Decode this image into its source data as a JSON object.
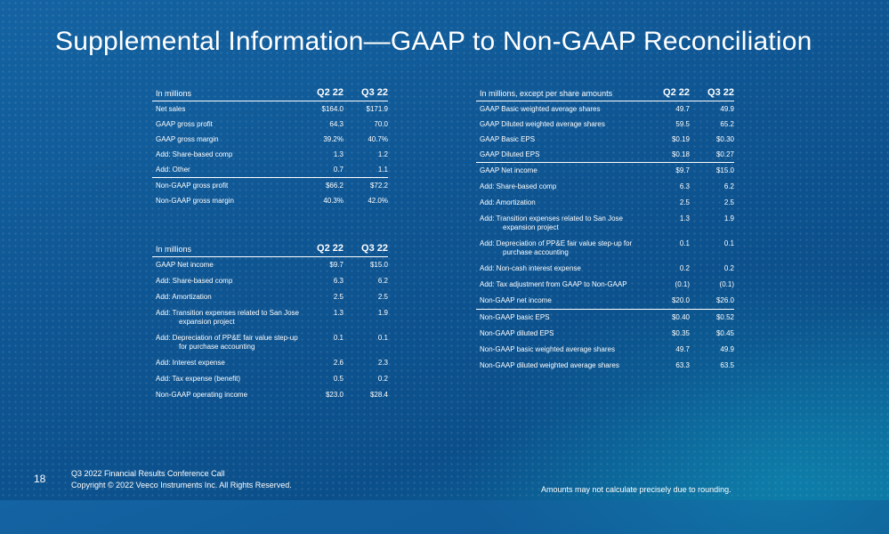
{
  "slide": {
    "title": "Supplemental Information—GAAP to Non-GAAP Reconciliation",
    "page_number": "18",
    "footer_line1": "Q3 2022 Financial Results Conference Call",
    "footer_line2": "Copyright © 2022 Veeco Instruments Inc. All Rights Reserved.",
    "note": "Amounts may not calculate precisely due to rounding."
  },
  "gross_table": {
    "header": {
      "label": "In millions",
      "col1": "Q2 22",
      "col2": "Q3 22"
    },
    "rows": [
      {
        "label": "Net sales",
        "q2": "$164.0",
        "q3": "$171.9"
      },
      {
        "label": "GAAP gross profit",
        "q2": "64.3",
        "q3": "70.0"
      },
      {
        "label": "GAAP gross margin",
        "q2": "39.2%",
        "q3": "40.7%"
      },
      {
        "label": "Add: Share-based comp",
        "q2": "1.3",
        "q3": "1.2"
      },
      {
        "label": "Add: Other",
        "q2": "0.7",
        "q3": "1.1"
      },
      {
        "label": "Non-GAAP gross profit",
        "q2": "$66.2",
        "q3": "$72.2"
      },
      {
        "label": "Non-GAAP gross margin",
        "q2": "40.3%",
        "q3": "42.0%"
      }
    ]
  },
  "operating_table": {
    "header": {
      "label": "In millions",
      "col1": "Q2 22",
      "col2": "Q3 22"
    },
    "rows": [
      {
        "label": "GAAP Net income",
        "q2": "$9.7",
        "q3": "$15.0"
      },
      {
        "label": "Add: Share-based comp",
        "q2": "6.3",
        "q3": "6.2"
      },
      {
        "label": "Add: Amortization",
        "q2": "2.5",
        "q3": "2.5"
      },
      {
        "label": "Add: Transition expenses related to San Jose",
        "label2": "expansion project",
        "q2": "1.3",
        "q3": "1.9"
      },
      {
        "label": "Add: Depreciation of PP&E fair value step-up",
        "label2": "for purchase accounting",
        "q2": "0.1",
        "q3": "0.1"
      },
      {
        "label": "Add: Interest expense",
        "q2": "2.6",
        "q3": "2.3"
      },
      {
        "label": "Add: Tax expense (benefit)",
        "q2": "0.5",
        "q3": "0.2"
      },
      {
        "label": "Non-GAAP operating income",
        "q2": "$23.0",
        "q3": "$28.4"
      }
    ]
  },
  "eps_table": {
    "header": {
      "label": "In millions, except per share amounts",
      "col1": "Q2 22",
      "col2": "Q3 22"
    },
    "rows": [
      {
        "label": "GAAP Basic weighted average shares",
        "q2": "49.7",
        "q3": "49.9"
      },
      {
        "label": "GAAP Diluted weighted average shares",
        "q2": "59.5",
        "q3": "65.2"
      },
      {
        "label": "GAAP Basic EPS",
        "q2": "$0.19",
        "q3": "$0.30"
      },
      {
        "label": "GAAP Diluted EPS",
        "q2": "$0.18",
        "q3": "$0.27"
      },
      {
        "label": "GAAP Net income",
        "q2": "$9.7",
        "q3": "$15.0"
      },
      {
        "label": "Add: Share-based comp",
        "q2": "6.3",
        "q3": "6.2"
      },
      {
        "label": "Add: Amortization",
        "q2": "2.5",
        "q3": "2.5"
      },
      {
        "label": "Add: Transition expenses related to San Jose",
        "label2": "expansion project",
        "q2": "1.3",
        "q3": "1.9"
      },
      {
        "label": "Add: Depreciation of PP&E fair value step-up for",
        "label2": "purchase accounting",
        "q2": "0.1",
        "q3": "0.1"
      },
      {
        "label": "Add: Non-cash interest expense",
        "q2": "0.2",
        "q3": "0.2"
      },
      {
        "label": "Add: Tax adjustment from GAAP to Non-GAAP",
        "q2": "(0.1)",
        "q3": "(0.1)"
      },
      {
        "label": "Non-GAAP net income",
        "q2": "$20.0",
        "q3": "$26.0"
      },
      {
        "label": "Non-GAAP basic EPS",
        "q2": "$0.40",
        "q3": "$0.52"
      },
      {
        "label": "Non-GAAP diluted EPS",
        "q2": "$0.35",
        "q3": "$0.45"
      },
      {
        "label": "Non-GAAP basic weighted average shares",
        "q2": "49.7",
        "q3": "49.9"
      },
      {
        "label": "Non-GAAP diluted weighted average shares",
        "q2": "63.3",
        "q3": "63.5"
      }
    ]
  }
}
